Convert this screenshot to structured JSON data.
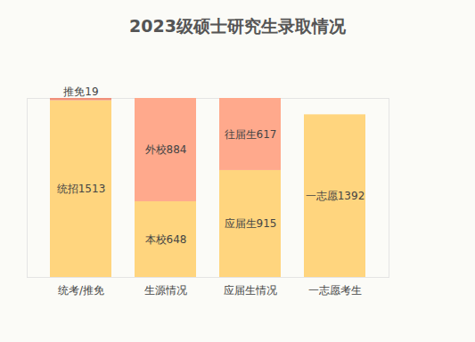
{
  "chart_data": {
    "type": "bar",
    "title": "2023级硕士研究生录取情况",
    "categories": [
      "统考/推免",
      "生源情况",
      "应届生情况",
      "一志愿考生"
    ],
    "stacked": true,
    "data_labels": true,
    "tick_labels": "x",
    "ylim": [
      0,
      1532
    ],
    "yticks": [],
    "series": [
      {
        "name": "统招",
        "color": "#FFD57E",
        "values": [
          1513,
          null,
          null,
          null
        ],
        "value_labels": [
          "统招1513",
          null,
          null,
          null
        ]
      },
      {
        "name": "推免",
        "color": "#F0907A",
        "values": [
          19,
          null,
          null,
          null
        ],
        "value_labels": [
          "推免19",
          null,
          null,
          null
        ]
      },
      {
        "name": "本校",
        "color": "#FFD57E",
        "values": [
          null,
          648,
          null,
          null
        ],
        "value_labels": [
          null,
          "本校648",
          null,
          null
        ]
      },
      {
        "name": "外校",
        "color": "#FFA98C",
        "values": [
          null,
          884,
          null,
          null
        ],
        "value_labels": [
          null,
          "外校884",
          null,
          null
        ]
      },
      {
        "name": "应届生",
        "color": "#FFD57E",
        "values": [
          null,
          null,
          915,
          null
        ],
        "value_labels": [
          null,
          null,
          "应届生915",
          null
        ]
      },
      {
        "name": "往届生",
        "color": "#FFA98C",
        "values": [
          null,
          null,
          617,
          null
        ],
        "value_labels": [
          null,
          null,
          "往届生617",
          null
        ]
      },
      {
        "name": "一志愿",
        "color": "#FFD57E",
        "values": [
          null,
          null,
          null,
          1392
        ],
        "value_labels": [
          null,
          null,
          null,
          "一志愿1392"
        ]
      }
    ]
  }
}
